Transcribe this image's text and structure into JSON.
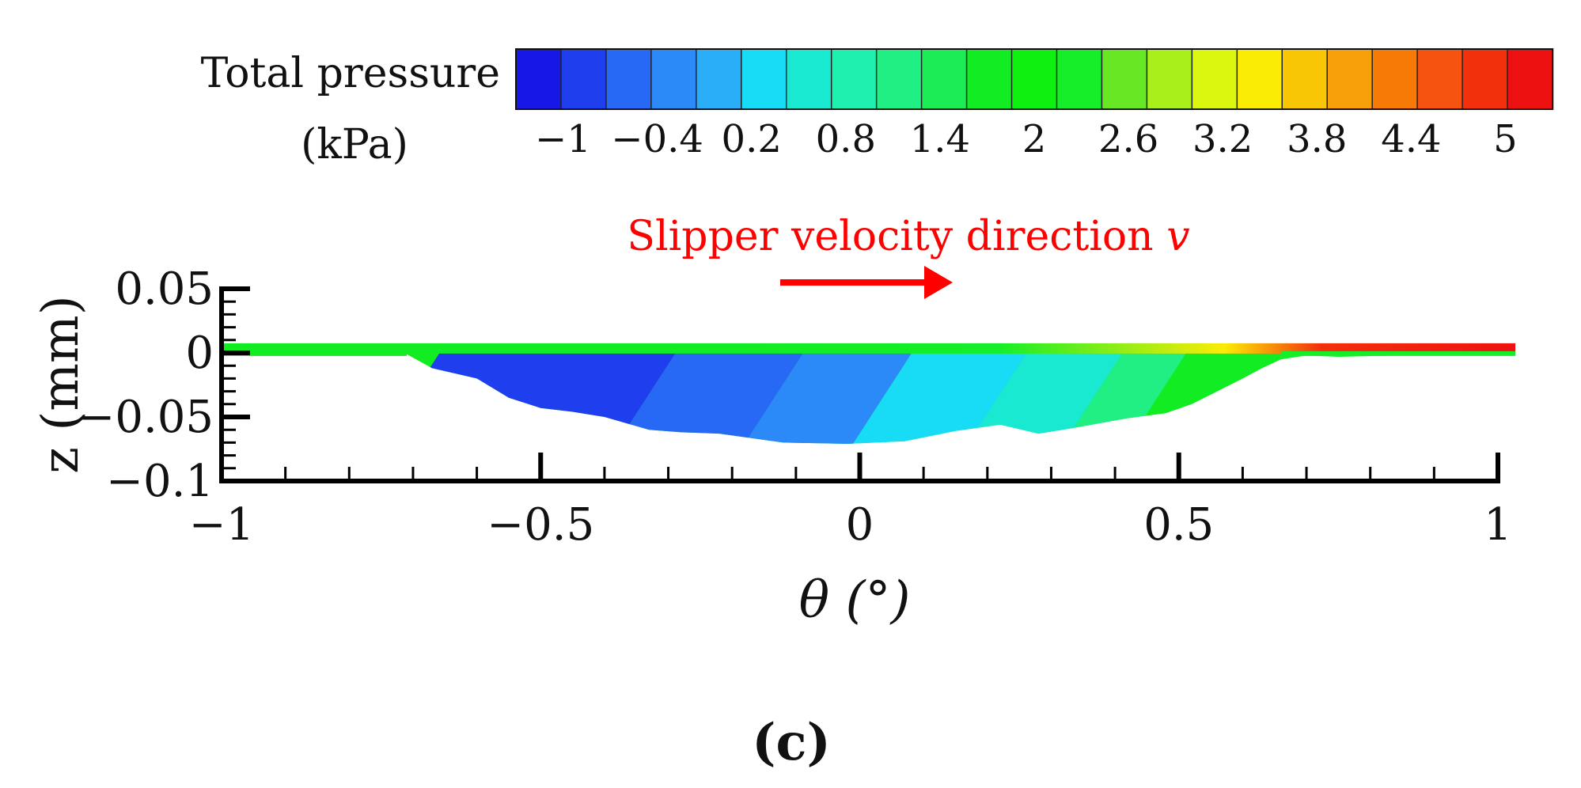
{
  "chart_data": {
    "type": "heatmap",
    "title": "",
    "panel_label": "(c)",
    "xlabel": "θ (°)",
    "ylabel": "z (mm)",
    "xlim": [
      -1,
      1
    ],
    "ylim": [
      -0.1,
      0.05
    ],
    "x_ticks": [
      -1,
      -0.5,
      0,
      0.5,
      1
    ],
    "x_tick_labels": [
      "−1",
      "−0.5",
      "0",
      "0.5",
      "1"
    ],
    "y_ticks": [
      0.05,
      0,
      -0.05,
      -0.1
    ],
    "y_tick_labels": [
      "0.05",
      "0",
      "−0.05",
      "−0.1"
    ],
    "colorbar": {
      "label_line1": "Total pressure",
      "label_line2": "(kPa)",
      "range": [
        -1.3,
        5.3
      ],
      "tick_values": [
        -1,
        -0.4,
        0.2,
        0.8,
        1.4,
        2,
        2.6,
        3.2,
        3.8,
        4.4,
        5
      ],
      "tick_labels": [
        "−1",
        "−0.4",
        "0.2",
        "0.8",
        "1.4",
        "2",
        "2.6",
        "3.2",
        "3.8",
        "4.4",
        "5"
      ],
      "colors": [
        "#1717e6",
        "#1f3fef",
        "#2768f5",
        "#2b8af7",
        "#2aaef7",
        "#18dcf5",
        "#1ae9d2",
        "#1ff0b0",
        "#20ef84",
        "#1ded55",
        "#12ec22",
        "#0ef00f",
        "#15ee28",
        "#68e825",
        "#a8ef1c",
        "#dcf70f",
        "#fbec06",
        "#f9c606",
        "#f7a00a",
        "#f77a06",
        "#f65210",
        "#f2300c",
        "#ee1111"
      ]
    },
    "annotation": {
      "text": "Slipper velocity direction ",
      "symbol": "v",
      "color": "#ff0000"
    },
    "film_top_z": 0.005,
    "bottom_profile": {
      "theta": [
        -1,
        -0.71,
        -0.67,
        -0.6,
        -0.55,
        -0.5,
        -0.45,
        -0.4,
        -0.33,
        -0.28,
        -0.22,
        -0.12,
        -0.02,
        0.07,
        0.15,
        0.22,
        0.28,
        0.33,
        0.42,
        0.48,
        0.52,
        0.56,
        0.6,
        0.63,
        0.66,
        0.7,
        0.75,
        0.85,
        1
      ],
      "z": [
        -0.001,
        -0.001,
        -0.012,
        -0.02,
        -0.035,
        -0.043,
        -0.046,
        -0.05,
        -0.06,
        -0.062,
        -0.063,
        -0.07,
        -0.071,
        -0.069,
        -0.061,
        -0.056,
        -0.063,
        -0.059,
        -0.051,
        -0.047,
        -0.04,
        -0.03,
        -0.02,
        -0.012,
        -0.005,
        -0.002,
        -0.003,
        -0.002,
        -0.002
      ]
    },
    "pressure_bands_kPa": [
      {
        "theta": [
          -0.72,
          -0.35
        ],
        "value": -1.0
      },
      {
        "theta": [
          -0.35,
          -0.15
        ],
        "value": -0.7
      },
      {
        "theta": [
          -0.15,
          0.02
        ],
        "value": -0.4
      },
      {
        "theta": [
          0.02,
          0.2
        ],
        "value": 0.2
      },
      {
        "theta": [
          0.2,
          0.35
        ],
        "value": 0.5
      },
      {
        "theta": [
          0.35,
          0.45
        ],
        "value": 1.1
      },
      {
        "theta": [
          0.45,
          0.6
        ],
        "value": 1.7
      },
      {
        "theta": [
          0.6,
          0.72
        ],
        "value": 2.3
      }
    ],
    "surface_strip_kPa": [
      {
        "theta": -1.0,
        "value": 1.6
      },
      {
        "theta": -0.3,
        "value": 1.8
      },
      {
        "theta": 0.2,
        "value": 2.2
      },
      {
        "theta": 0.55,
        "value": 3.4
      },
      {
        "theta": 0.7,
        "value": 4.8
      },
      {
        "theta": 1.0,
        "value": 5.2
      }
    ]
  }
}
